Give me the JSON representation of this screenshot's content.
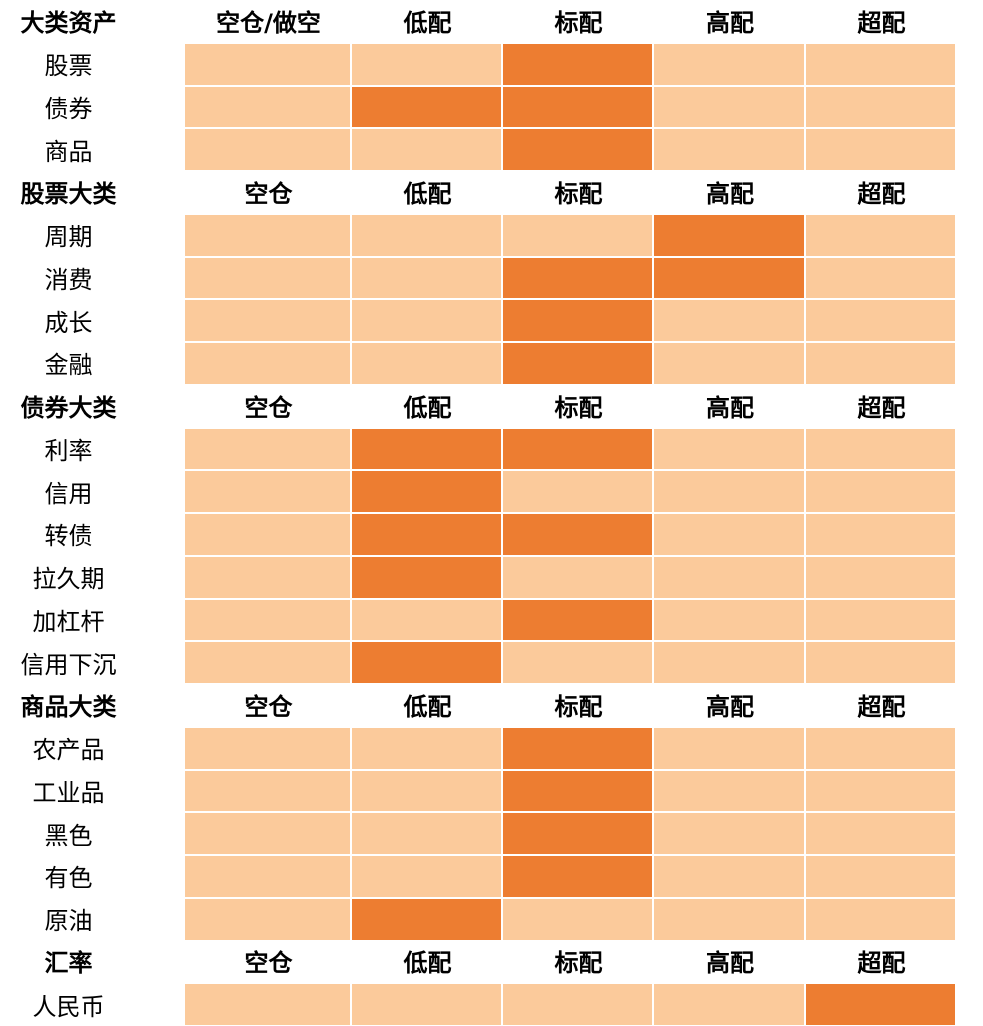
{
  "colors": {
    "on": "#ED7D31",
    "off": "#FBCA9B"
  },
  "sections": [
    {
      "title": "大类资产",
      "columns": [
        "空仓/做空",
        "低配",
        "标配",
        "高配",
        "超配"
      ],
      "rows": [
        {
          "label": "股票",
          "highlight": [
            2
          ]
        },
        {
          "label": "债券",
          "highlight": [
            1,
            2
          ]
        },
        {
          "label": "商品",
          "highlight": [
            2
          ]
        }
      ]
    },
    {
      "title": "股票大类",
      "columns": [
        "空仓",
        "低配",
        "标配",
        "高配",
        "超配"
      ],
      "rows": [
        {
          "label": "周期",
          "highlight": [
            3
          ]
        },
        {
          "label": "消费",
          "highlight": [
            2,
            3
          ]
        },
        {
          "label": "成长",
          "highlight": [
            2
          ]
        },
        {
          "label": "金融",
          "highlight": [
            2
          ]
        }
      ]
    },
    {
      "title": "债券大类",
      "columns": [
        "空仓",
        "低配",
        "标配",
        "高配",
        "超配"
      ],
      "rows": [
        {
          "label": "利率",
          "highlight": [
            1,
            2
          ]
        },
        {
          "label": "信用",
          "highlight": [
            1
          ]
        },
        {
          "label": "转债",
          "highlight": [
            1,
            2
          ]
        },
        {
          "label": "拉久期",
          "highlight": [
            1
          ]
        },
        {
          "label": "加杠杆",
          "highlight": [
            2
          ]
        },
        {
          "label": "信用下沉",
          "highlight": [
            1
          ]
        }
      ]
    },
    {
      "title": "商品大类",
      "columns": [
        "空仓",
        "低配",
        "标配",
        "高配",
        "超配"
      ],
      "rows": [
        {
          "label": "农产品",
          "highlight": [
            2
          ]
        },
        {
          "label": "工业品",
          "highlight": [
            2
          ]
        },
        {
          "label": "黑色",
          "highlight": [
            2
          ]
        },
        {
          "label": "有色",
          "highlight": [
            2
          ]
        },
        {
          "label": "原油",
          "highlight": [
            1
          ]
        }
      ]
    },
    {
      "title": "汇率",
      "columns": [
        "空仓",
        "低配",
        "标配",
        "高配",
        "超配"
      ],
      "rows": [
        {
          "label": "人民币",
          "highlight": [
            4
          ]
        }
      ]
    }
  ]
}
